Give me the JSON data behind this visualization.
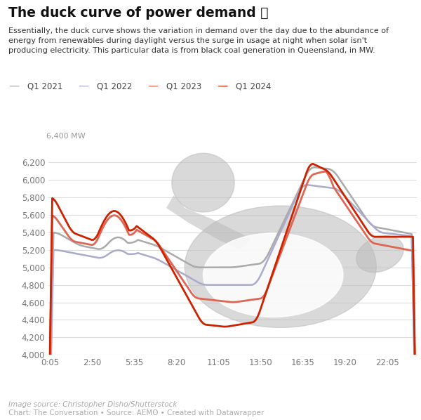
{
  "title": "The duck curve of power demand 🦆",
  "subtitle_lines": [
    "Essentially, the duck curve shows the variation in demand over the day due to the abundance of",
    "energy from renewables during daylight versus the surge in usage at night when solar isn't",
    "producing electricity. This particular data is from black coal generation in Queensland, in MW."
  ],
  "ylabel_top": "6,400 MW",
  "footer1": "Image source: Christopher Disho/Shutterstock",
  "footer2": "Chart: The Conversation • Source: AEMO • Created with Datawrapper",
  "legend_labels": [
    "Q1 2021",
    "Q1 2022",
    "Q1 2023",
    "Q1 2024"
  ],
  "line_colors": [
    "#aaaaaa",
    "#aaaacc",
    "#dd6655",
    "#cc2200"
  ],
  "xtick_labels": [
    "0:05",
    "2:50",
    "5:35",
    "8:20",
    "11:05",
    "13:50",
    "16:35",
    "19:20",
    "22:05"
  ],
  "xtick_hours": [
    0.083,
    2.833,
    5.583,
    8.333,
    11.083,
    13.833,
    16.583,
    19.333,
    22.083
  ],
  "ytick_vals": [
    4000,
    4200,
    4400,
    4600,
    4800,
    5000,
    5200,
    5400,
    5600,
    5800,
    6000,
    6200
  ],
  "ylim": [
    4000,
    6400
  ],
  "duck_color": "#bbbbbb",
  "duck_alpha": 0.55,
  "bg_color": "#ffffff",
  "grid_color": "#dddddd",
  "text_color_dark": "#222222",
  "text_color_mid": "#444444",
  "text_color_light": "#888888"
}
